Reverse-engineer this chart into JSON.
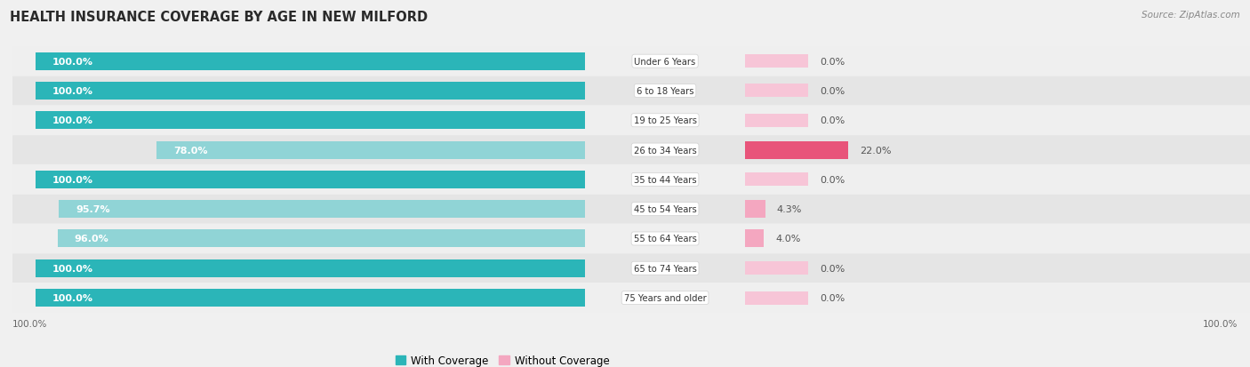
{
  "title": "HEALTH INSURANCE COVERAGE BY AGE IN NEW MILFORD",
  "source": "Source: ZipAtlas.com",
  "categories": [
    "Under 6 Years",
    "6 to 18 Years",
    "19 to 25 Years",
    "26 to 34 Years",
    "35 to 44 Years",
    "45 to 54 Years",
    "55 to 64 Years",
    "65 to 74 Years",
    "75 Years and older"
  ],
  "with_coverage": [
    100.0,
    100.0,
    100.0,
    78.0,
    100.0,
    95.7,
    96.0,
    100.0,
    100.0
  ],
  "without_coverage": [
    0.0,
    0.0,
    0.0,
    22.0,
    0.0,
    4.3,
    4.0,
    0.0,
    0.0
  ],
  "color_with_full": "#2bb5b8",
  "color_with_light": "#90d4d6",
  "color_without_large": "#e8547a",
  "color_without_small": "#f4a7c0",
  "color_without_zero": "#f7c5d7",
  "title_fontsize": 10.5,
  "label_fontsize": 8.0,
  "tick_fontsize": 7.5,
  "legend_fontsize": 8.5,
  "row_bg_odd": "#efefef",
  "row_bg_even": "#e5e5e5",
  "fig_bg": "#f0f0f0"
}
